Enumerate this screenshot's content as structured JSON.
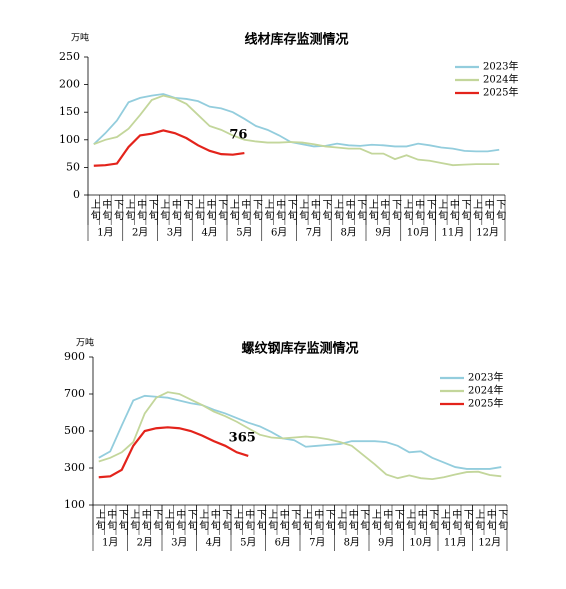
{
  "chart_data": [
    {
      "type": "line",
      "title": "线材库存监测情况",
      "unit": "万吨",
      "annotation": "76",
      "categories": [
        "上旬",
        "中旬",
        "下旬",
        "上旬",
        "中旬",
        "下旬",
        "上旬",
        "中旬",
        "下旬",
        "上旬",
        "中旬",
        "下旬",
        "上旬",
        "中旬",
        "下旬",
        "上旬",
        "中旬",
        "下旬",
        "上旬",
        "中旬",
        "下旬",
        "上旬",
        "中旬",
        "下旬",
        "上旬",
        "中旬",
        "下旬",
        "上旬",
        "中旬",
        "下旬",
        "上旬",
        "中旬",
        "下旬",
        "上旬",
        "中旬",
        "下旬"
      ],
      "months": [
        "1月",
        "2月",
        "3月",
        "4月",
        "5月",
        "6月",
        "7月",
        "8月",
        "9月",
        "10月",
        "11月",
        "12月"
      ],
      "ylim": [
        0,
        250
      ],
      "yticks": [
        0,
        50,
        100,
        150,
        200,
        250
      ],
      "legend": "upper right",
      "series": [
        {
          "name": "2023年",
          "color": "#93cddd",
          "values": [
            92,
            112,
            135,
            168,
            176,
            180,
            183,
            176,
            174,
            170,
            160,
            157,
            150,
            138,
            125,
            118,
            108,
            96,
            92,
            88,
            89,
            93,
            90,
            89,
            91,
            90,
            88,
            88,
            93,
            90,
            86,
            84,
            80,
            79,
            79,
            82
          ]
        },
        {
          "name": "2024年",
          "color": "#c3d69b",
          "values": [
            92,
            100,
            105,
            120,
            145,
            172,
            180,
            175,
            165,
            145,
            125,
            118,
            108,
            100,
            97,
            95,
            95,
            96,
            95,
            92,
            88,
            86,
            84,
            84,
            75,
            75,
            65,
            72,
            64,
            62,
            58,
            54,
            55,
            56,
            56,
            56
          ]
        },
        {
          "name": "2025年",
          "color": "#e3231b",
          "values": [
            53,
            54,
            57,
            87,
            108,
            111,
            117,
            112,
            103,
            90,
            80,
            74,
            73,
            76,
            null,
            null,
            null,
            null,
            null,
            null,
            null,
            null,
            null,
            null,
            null,
            null,
            null,
            null,
            null,
            null,
            null,
            null,
            null,
            null,
            null,
            null
          ]
        }
      ]
    },
    {
      "type": "line",
      "title": "螺纹钢库存监测情况",
      "unit": "万吨",
      "annotation": "365",
      "categories": [
        "上旬",
        "中旬",
        "下旬",
        "上旬",
        "中旬",
        "下旬",
        "上旬",
        "中旬",
        "下旬",
        "上旬",
        "中旬",
        "下旬",
        "上旬",
        "中旬",
        "下旬",
        "上旬",
        "中旬",
        "下旬",
        "上旬",
        "中旬",
        "下旬",
        "上旬",
        "中旬",
        "下旬",
        "上旬",
        "中旬",
        "下旬",
        "上旬",
        "中旬",
        "下旬",
        "上旬",
        "中旬",
        "下旬",
        "上旬",
        "中旬",
        "下旬"
      ],
      "months": [
        "1月",
        "2月",
        "3月",
        "4月",
        "5月",
        "6月",
        "7月",
        "8月",
        "9月",
        "10月",
        "11月",
        "12月"
      ],
      "ylim": [
        100,
        900
      ],
      "yticks": [
        100,
        300,
        500,
        700,
        900
      ],
      "legend": "upper right",
      "series": [
        {
          "name": "2023年",
          "color": "#93cddd",
          "values": [
            355,
            390,
            530,
            665,
            690,
            685,
            680,
            665,
            650,
            640,
            615,
            595,
            570,
            545,
            525,
            495,
            460,
            450,
            415,
            420,
            425,
            430,
            445,
            445,
            445,
            440,
            420,
            385,
            390,
            355,
            330,
            305,
            295,
            295,
            295,
            305
          ]
        },
        {
          "name": "2024年",
          "color": "#c3d69b",
          "values": [
            335,
            355,
            385,
            440,
            595,
            680,
            710,
            700,
            670,
            640,
            605,
            580,
            550,
            515,
            480,
            465,
            460,
            465,
            470,
            465,
            455,
            440,
            420,
            370,
            320,
            265,
            245,
            260,
            245,
            240,
            250,
            265,
            278,
            280,
            262,
            255
          ]
        },
        {
          "name": "2025年",
          "color": "#e3231b",
          "values": [
            250,
            255,
            290,
            420,
            500,
            515,
            520,
            515,
            500,
            475,
            445,
            420,
            385,
            365,
            null,
            null,
            null,
            null,
            null,
            null,
            null,
            null,
            null,
            null,
            null,
            null,
            null,
            null,
            null,
            null,
            null,
            null,
            null,
            null,
            null,
            null
          ]
        }
      ]
    }
  ]
}
